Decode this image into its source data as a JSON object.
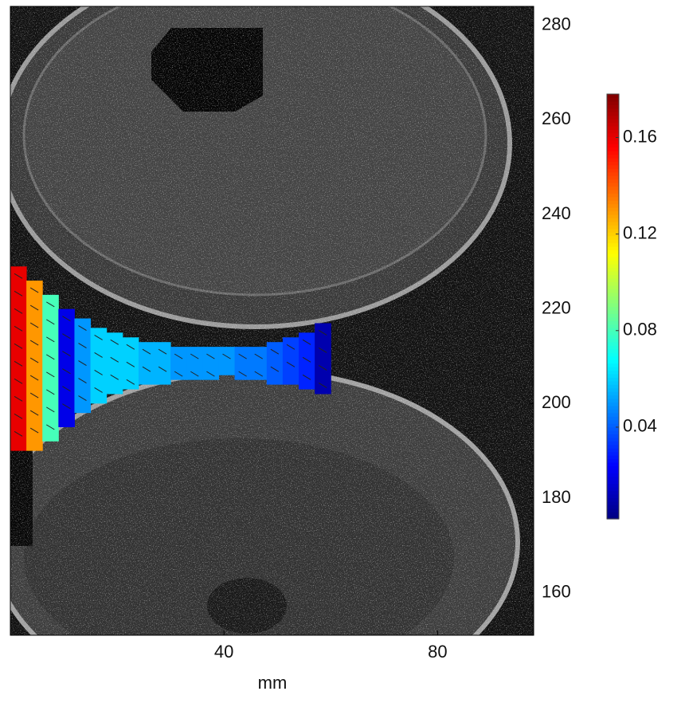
{
  "chart_data": {
    "type": "field",
    "xlabel": "mm",
    "xlim": [
      0,
      98
    ],
    "xticks": [
      40,
      80
    ],
    "ylim": [
      151,
      284
    ],
    "yticks": [
      160,
      180,
      200,
      220,
      240,
      260,
      280
    ],
    "clim": [
      0.002,
      0.178
    ],
    "cticks": [
      0.04,
      0.08,
      0.12,
      0.16
    ],
    "colormap": "jet",
    "field": {
      "x": [
        0,
        3,
        6,
        9,
        12,
        15,
        18,
        21,
        24,
        27,
        30,
        33,
        36,
        39,
        42,
        45,
        48,
        51,
        54,
        57
      ],
      "y_low": [
        190,
        190,
        192,
        195,
        198,
        200,
        202,
        203,
        204,
        204,
        205,
        205,
        205,
        206,
        205,
        205,
        204,
        204,
        203,
        202
      ],
      "y_high": [
        229,
        226,
        223,
        220,
        218,
        216,
        215,
        214,
        213,
        213,
        212,
        212,
        212,
        212,
        212,
        212,
        213,
        214,
        215,
        217
      ],
      "values": [
        0.16,
        0.13,
        0.08,
        0.02,
        0.05,
        0.06,
        0.06,
        0.06,
        0.055,
        0.055,
        0.05,
        0.05,
        0.05,
        0.05,
        0.045,
        0.045,
        0.04,
        0.035,
        0.03,
        0.01
      ]
    }
  }
}
